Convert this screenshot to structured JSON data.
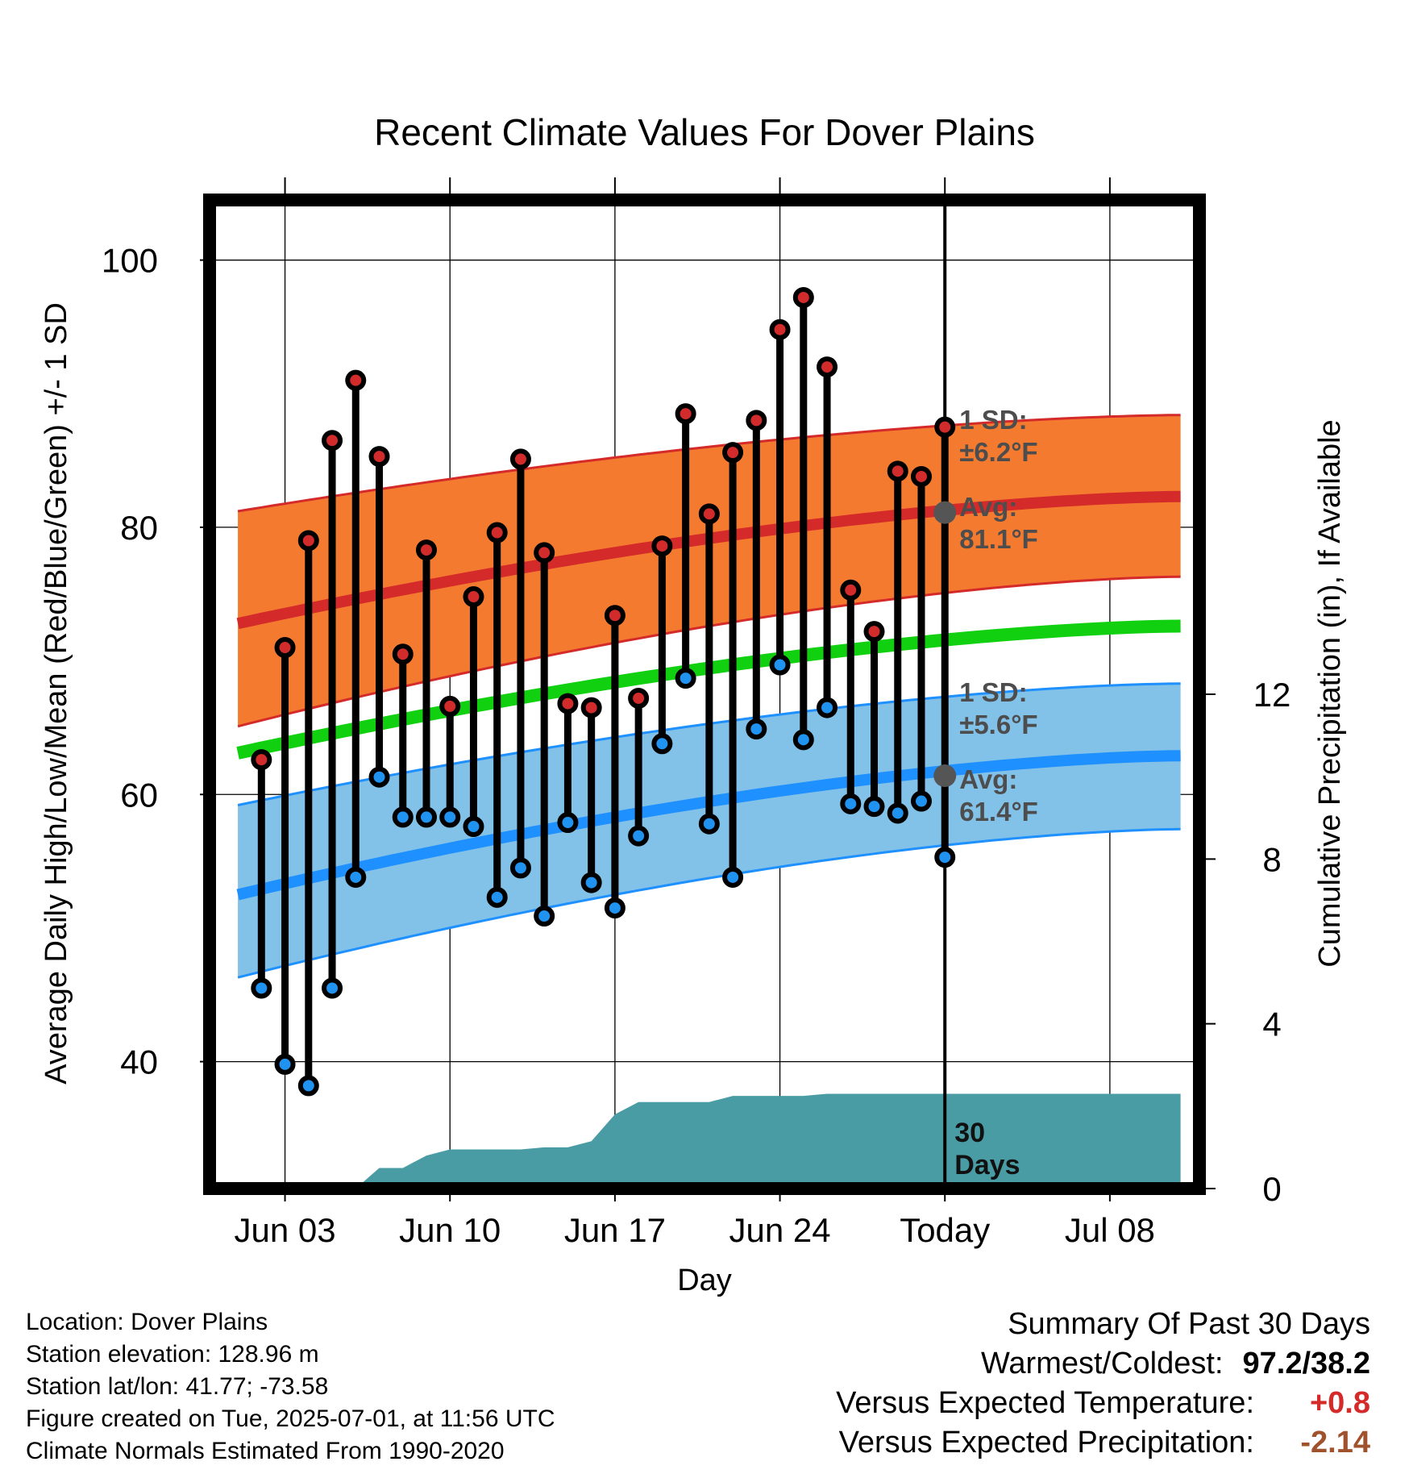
{
  "chart_data": {
    "type": "line",
    "title": "Recent Climate Values For Dover Plains",
    "xlabel": "Day",
    "ylabel": "Average Daily High/Low/Mean (Red/Blue/Green) +/- 1 SD",
    "y2label": "Cumulative Precipitation (in), If Available",
    "x_tick_labels": [
      "Jun 03",
      "Jun 10",
      "Jun 17",
      "Jun 24",
      "Today",
      "Jul 08"
    ],
    "x_tick_days": [
      3,
      10,
      17,
      24,
      31,
      38
    ],
    "xlim": [
      -0.2,
      41.8
    ],
    "ylim": [
      30.5,
      104.5
    ],
    "y_ticks": [
      40,
      60,
      80,
      100
    ],
    "y2_ticks": [
      0,
      4,
      8,
      12
    ],
    "y2lim": [
      0,
      24
    ],
    "grid": true,
    "today_day": 31,
    "observed": {
      "days": [
        2,
        3,
        4,
        5,
        6,
        7,
        8,
        9,
        10,
        11,
        12,
        13,
        14,
        15,
        16,
        17,
        18,
        19,
        20,
        21,
        22,
        23,
        24,
        25,
        26,
        27,
        28,
        29,
        30
      ],
      "high": [
        62.6,
        71.0,
        79.0,
        86.5,
        91.0,
        85.3,
        70.5,
        78.3,
        66.6,
        74.8,
        79.6,
        85.1,
        78.1,
        66.8,
        66.5,
        73.4,
        67.2,
        78.6,
        88.5,
        81.0,
        85.6,
        88.0,
        94.8,
        97.2,
        92.0,
        75.3,
        72.2,
        84.2,
        83.8
      ],
      "low": [
        45.5,
        39.8,
        38.2,
        45.5,
        53.8,
        61.3,
        58.3,
        58.3,
        58.3,
        57.6,
        52.3,
        54.5,
        50.9,
        57.9,
        53.4,
        51.5,
        56.9,
        63.8,
        68.7,
        57.8,
        53.8,
        64.9,
        69.7,
        64.1,
        66.5,
        59.3,
        59.1,
        58.6,
        59.5
      ],
      "low_last": 55.3,
      "high_last": 87.5,
      "last_day": 31
    },
    "normals": {
      "days": [
        1,
        41
      ],
      "high_avg": [
        72.8,
        82.3
      ],
      "high_sd_upper": [
        81.2,
        88.4
      ],
      "high_sd_lower": [
        65.1,
        76.3
      ],
      "mean_avg": [
        63.1,
        72.6
      ],
      "low_avg": [
        52.5,
        62.9
      ],
      "low_sd_upper": [
        59.2,
        68.3
      ],
      "low_sd_lower": [
        46.3,
        57.4
      ]
    },
    "precip": {
      "days": [
        1,
        2,
        3,
        4,
        5,
        6,
        7,
        8,
        9,
        10,
        11,
        12,
        13,
        14,
        15,
        16,
        17,
        18,
        19,
        20,
        21,
        22,
        23,
        24,
        25,
        26,
        27,
        28,
        29,
        30,
        31,
        41
      ],
      "values": [
        0,
        0,
        0,
        0,
        0,
        0,
        0.5,
        0.5,
        0.8,
        0.95,
        0.95,
        0.95,
        0.95,
        1.0,
        1.0,
        1.15,
        1.8,
        2.1,
        2.1,
        2.1,
        2.1,
        2.25,
        2.25,
        2.25,
        2.25,
        2.3,
        2.3,
        2.3,
        2.3,
        2.3,
        2.3,
        2.3
      ]
    },
    "annotations": {
      "high_sd_label": [
        "1 SD:",
        "±6.2°F"
      ],
      "high_avg_label": [
        "Avg:",
        "81.1°F"
      ],
      "high_avg_today": 81.1,
      "low_sd_label": [
        "1 SD:",
        "±5.6°F"
      ],
      "low_avg_label": [
        "Avg:",
        "61.4°F"
      ],
      "low_avg_today": 61.4,
      "days_label": [
        "30",
        "Days"
      ]
    },
    "colors": {
      "high_band": "#f47a30",
      "high_line": "#d42a2a",
      "low_band": "#82c1e8",
      "low_line": "#1e90ff",
      "mean_line": "#10d010",
      "precip": "#4a9ca4",
      "high_marker": "#d22b2b",
      "low_marker": "#2092f0",
      "today_marker": "#555555"
    }
  },
  "meta": {
    "location": "Location: Dover Plains",
    "elevation": "Station elevation: 128.96 m",
    "latlon": "Station lat/lon: 41.77; -73.58",
    "created": "Figure created on Tue, 2025-07-01, at 11:56 UTC",
    "normals": "Climate Normals Estimated From 1990-2020"
  },
  "summary": {
    "heading": "Summary Of Past 30 Days",
    "warm_label": "Warmest/Coldest:",
    "warm_value": "97.2/38.2",
    "temp_label": "Versus Expected Temperature:",
    "temp_value": "+0.8",
    "temp_color": "#d42a2a",
    "precip_label": "Versus Expected Precipitation:",
    "precip_value": "-2.14",
    "precip_color": "#a0522d"
  }
}
